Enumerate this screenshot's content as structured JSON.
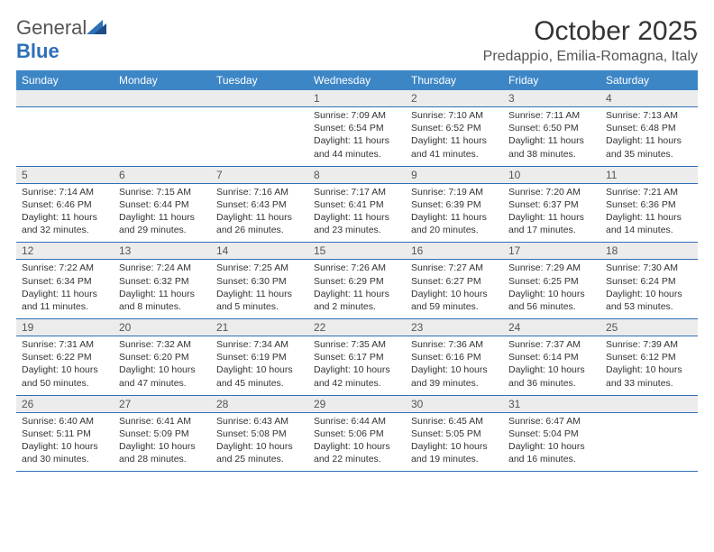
{
  "brand": {
    "part1": "General",
    "part2": "Blue"
  },
  "colors": {
    "header_bg": "#3d86c6",
    "header_text": "#ffffff",
    "daynum_bg": "#ececec",
    "daynum_text": "#555555",
    "border": "#2e6fb7",
    "body_text": "#333333",
    "logo_gray": "#555555",
    "logo_blue": "#2e6fb7",
    "background": "#ffffff"
  },
  "typography": {
    "title_fontsize": 30,
    "location_fontsize": 16,
    "weekday_fontsize": 12,
    "daynum_fontsize": 12,
    "detail_fontsize": 10.5
  },
  "title": "October 2025",
  "location": "Predappio, Emilia-Romagna, Italy",
  "weekdays": [
    "Sunday",
    "Monday",
    "Tuesday",
    "Wednesday",
    "Thursday",
    "Friday",
    "Saturday"
  ],
  "weeks": [
    {
      "nums": [
        "",
        "",
        "",
        "1",
        "2",
        "3",
        "4"
      ],
      "details": [
        "",
        "",
        "",
        "Sunrise: 7:09 AM\nSunset: 6:54 PM\nDaylight: 11 hours and 44 minutes.",
        "Sunrise: 7:10 AM\nSunset: 6:52 PM\nDaylight: 11 hours and 41 minutes.",
        "Sunrise: 7:11 AM\nSunset: 6:50 PM\nDaylight: 11 hours and 38 minutes.",
        "Sunrise: 7:13 AM\nSunset: 6:48 PM\nDaylight: 11 hours and 35 minutes."
      ]
    },
    {
      "nums": [
        "5",
        "6",
        "7",
        "8",
        "9",
        "10",
        "11"
      ],
      "details": [
        "Sunrise: 7:14 AM\nSunset: 6:46 PM\nDaylight: 11 hours and 32 minutes.",
        "Sunrise: 7:15 AM\nSunset: 6:44 PM\nDaylight: 11 hours and 29 minutes.",
        "Sunrise: 7:16 AM\nSunset: 6:43 PM\nDaylight: 11 hours and 26 minutes.",
        "Sunrise: 7:17 AM\nSunset: 6:41 PM\nDaylight: 11 hours and 23 minutes.",
        "Sunrise: 7:19 AM\nSunset: 6:39 PM\nDaylight: 11 hours and 20 minutes.",
        "Sunrise: 7:20 AM\nSunset: 6:37 PM\nDaylight: 11 hours and 17 minutes.",
        "Sunrise: 7:21 AM\nSunset: 6:36 PM\nDaylight: 11 hours and 14 minutes."
      ]
    },
    {
      "nums": [
        "12",
        "13",
        "14",
        "15",
        "16",
        "17",
        "18"
      ],
      "details": [
        "Sunrise: 7:22 AM\nSunset: 6:34 PM\nDaylight: 11 hours and 11 minutes.",
        "Sunrise: 7:24 AM\nSunset: 6:32 PM\nDaylight: 11 hours and 8 minutes.",
        "Sunrise: 7:25 AM\nSunset: 6:30 PM\nDaylight: 11 hours and 5 minutes.",
        "Sunrise: 7:26 AM\nSunset: 6:29 PM\nDaylight: 11 hours and 2 minutes.",
        "Sunrise: 7:27 AM\nSunset: 6:27 PM\nDaylight: 10 hours and 59 minutes.",
        "Sunrise: 7:29 AM\nSunset: 6:25 PM\nDaylight: 10 hours and 56 minutes.",
        "Sunrise: 7:30 AM\nSunset: 6:24 PM\nDaylight: 10 hours and 53 minutes."
      ]
    },
    {
      "nums": [
        "19",
        "20",
        "21",
        "22",
        "23",
        "24",
        "25"
      ],
      "details": [
        "Sunrise: 7:31 AM\nSunset: 6:22 PM\nDaylight: 10 hours and 50 minutes.",
        "Sunrise: 7:32 AM\nSunset: 6:20 PM\nDaylight: 10 hours and 47 minutes.",
        "Sunrise: 7:34 AM\nSunset: 6:19 PM\nDaylight: 10 hours and 45 minutes.",
        "Sunrise: 7:35 AM\nSunset: 6:17 PM\nDaylight: 10 hours and 42 minutes.",
        "Sunrise: 7:36 AM\nSunset: 6:16 PM\nDaylight: 10 hours and 39 minutes.",
        "Sunrise: 7:37 AM\nSunset: 6:14 PM\nDaylight: 10 hours and 36 minutes.",
        "Sunrise: 7:39 AM\nSunset: 6:12 PM\nDaylight: 10 hours and 33 minutes."
      ]
    },
    {
      "nums": [
        "26",
        "27",
        "28",
        "29",
        "30",
        "31",
        ""
      ],
      "details": [
        "Sunrise: 6:40 AM\nSunset: 5:11 PM\nDaylight: 10 hours and 30 minutes.",
        "Sunrise: 6:41 AM\nSunset: 5:09 PM\nDaylight: 10 hours and 28 minutes.",
        "Sunrise: 6:43 AM\nSunset: 5:08 PM\nDaylight: 10 hours and 25 minutes.",
        "Sunrise: 6:44 AM\nSunset: 5:06 PM\nDaylight: 10 hours and 22 minutes.",
        "Sunrise: 6:45 AM\nSunset: 5:05 PM\nDaylight: 10 hours and 19 minutes.",
        "Sunrise: 6:47 AM\nSunset: 5:04 PM\nDaylight: 10 hours and 16 minutes.",
        ""
      ]
    }
  ]
}
